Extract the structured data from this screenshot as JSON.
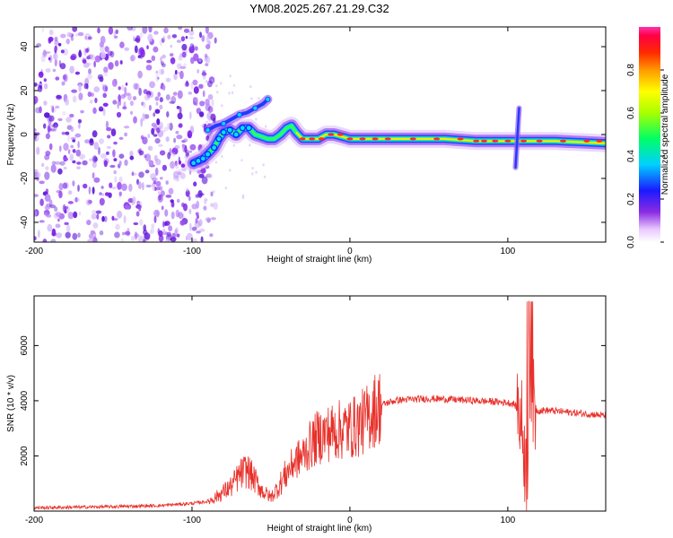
{
  "title": "YM08.2025.267.21.29.C32",
  "spectrogram": {
    "type": "heatmap",
    "xlabel": "Height of straight line (km)",
    "ylabel": "Frequency (Hz)",
    "xlim": [
      -200,
      162
    ],
    "ylim": [
      -49,
      49
    ],
    "xticks": [
      -200,
      -100,
      0,
      100
    ],
    "yticks": [
      -40,
      -20,
      0,
      20,
      40
    ],
    "ridge": [
      [
        -99,
        -13
      ],
      [
        -96,
        -12
      ],
      [
        -93,
        -11
      ],
      [
        -90,
        -9
      ],
      [
        -86,
        -6
      ],
      [
        -83,
        -2
      ],
      [
        -80,
        1
      ],
      [
        -76,
        2
      ],
      [
        -72,
        0
      ],
      [
        -68,
        3
      ],
      [
        -64,
        3
      ],
      [
        -60,
        0
      ],
      [
        -56,
        -1
      ],
      [
        -52,
        -2
      ],
      [
        -48,
        -2
      ],
      [
        -44,
        0
      ],
      [
        -40,
        3
      ],
      [
        -37,
        4
      ],
      [
        -34,
        1
      ],
      [
        -30,
        -2
      ],
      [
        -25,
        -2
      ],
      [
        -20,
        -2
      ],
      [
        -15,
        0
      ],
      [
        -10,
        0
      ],
      [
        -5,
        -1
      ],
      [
        0,
        -2
      ],
      [
        20,
        -2
      ],
      [
        40,
        -2
      ],
      [
        60,
        -2
      ],
      [
        80,
        -3
      ],
      [
        100,
        -3
      ],
      [
        105,
        -3
      ],
      [
        110,
        -3
      ],
      [
        130,
        -3
      ],
      [
        162,
        -4
      ]
    ],
    "upper_branch": [
      [
        -90,
        2
      ],
      [
        -85,
        4
      ],
      [
        -80,
        5
      ],
      [
        -75,
        7
      ],
      [
        -70,
        9
      ],
      [
        -65,
        10
      ],
      [
        -60,
        12
      ],
      [
        -55,
        14
      ],
      [
        -52,
        16
      ]
    ],
    "spike_x": 106,
    "spike_range": [
      -15,
      12
    ],
    "noise_region": [
      -200,
      -85
    ]
  },
  "colorbar": {
    "label": "Normalized spectral amplitude",
    "ticks": [
      0.0,
      0.2,
      0.4,
      0.6,
      0.8
    ],
    "tick_labels": [
      "0.0",
      "0.2",
      "0.4",
      "0.6",
      "0.8"
    ],
    "range": [
      0,
      1
    ]
  },
  "snr": {
    "type": "line",
    "xlabel": "Height of straight line (km)",
    "ylabel": "SNR (10 * v/v)",
    "xlim": [
      -200,
      162
    ],
    "ylim": [
      0,
      7800
    ],
    "xticks": [
      -200,
      -100,
      0,
      100
    ],
    "yticks": [
      2000,
      4000,
      6000
    ],
    "color": "#e8302a",
    "series": [
      [
        -200,
        120
      ],
      [
        -150,
        160
      ],
      [
        -120,
        200
      ],
      [
        -100,
        280
      ],
      [
        -90,
        350
      ],
      [
        -85,
        500
      ],
      [
        -80,
        700
      ],
      [
        -75,
        900
      ],
      [
        -70,
        1300
      ],
      [
        -65,
        1500
      ],
      [
        -60,
        1100
      ],
      [
        -55,
        700
      ],
      [
        -50,
        500
      ],
      [
        -45,
        900
      ],
      [
        -40,
        1400
      ],
      [
        -35,
        1800
      ],
      [
        -30,
        2000
      ],
      [
        -25,
        2400
      ],
      [
        -20,
        2700
      ],
      [
        -15,
        2800
      ],
      [
        -10,
        2900
      ],
      [
        -5,
        2950
      ],
      [
        0,
        3000
      ],
      [
        5,
        3100
      ],
      [
        10,
        3300
      ],
      [
        15,
        3650
      ],
      [
        20,
        3850
      ],
      [
        25,
        3950
      ],
      [
        30,
        4020
      ],
      [
        40,
        4050
      ],
      [
        50,
        4080
      ],
      [
        60,
        4060
      ],
      [
        70,
        4030
      ],
      [
        80,
        4000
      ],
      [
        90,
        3970
      ],
      [
        100,
        3930
      ],
      [
        104,
        3880
      ],
      [
        106,
        3700
      ],
      [
        108,
        3400
      ],
      [
        110,
        2600
      ],
      [
        112,
        1000
      ],
      [
        114,
        4500
      ],
      [
        116,
        3800
      ],
      [
        118,
        3650
      ],
      [
        125,
        3650
      ],
      [
        135,
        3600
      ],
      [
        145,
        3550
      ],
      [
        155,
        3500
      ],
      [
        162,
        3450
      ]
    ]
  }
}
